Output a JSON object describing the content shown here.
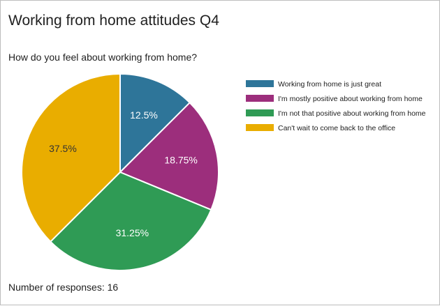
{
  "title": "Working from home attitudes Q4",
  "question": "How do you feel about working from home?",
  "footer": "Number of responses: 16",
  "chart_data": {
    "type": "pie",
    "categories": [
      "Working from home is just great",
      "I'm mostly positive about working from home",
      "I'm not that positive about working from home",
      "Can't wait to come back to the office"
    ],
    "values": [
      12.5,
      18.75,
      31.25,
      37.5
    ],
    "labels": [
      "12.5%",
      "18.75%",
      "31.25%",
      "37.5%"
    ],
    "colors": [
      "#2e7599",
      "#9c2e7c",
      "#2f9b55",
      "#e9ad00"
    ],
    "label_colors": [
      "#ffffff",
      "#ffffff",
      "#ffffff",
      "#333333"
    ],
    "legend_position": "right",
    "start_angle": "top, clockwise"
  }
}
